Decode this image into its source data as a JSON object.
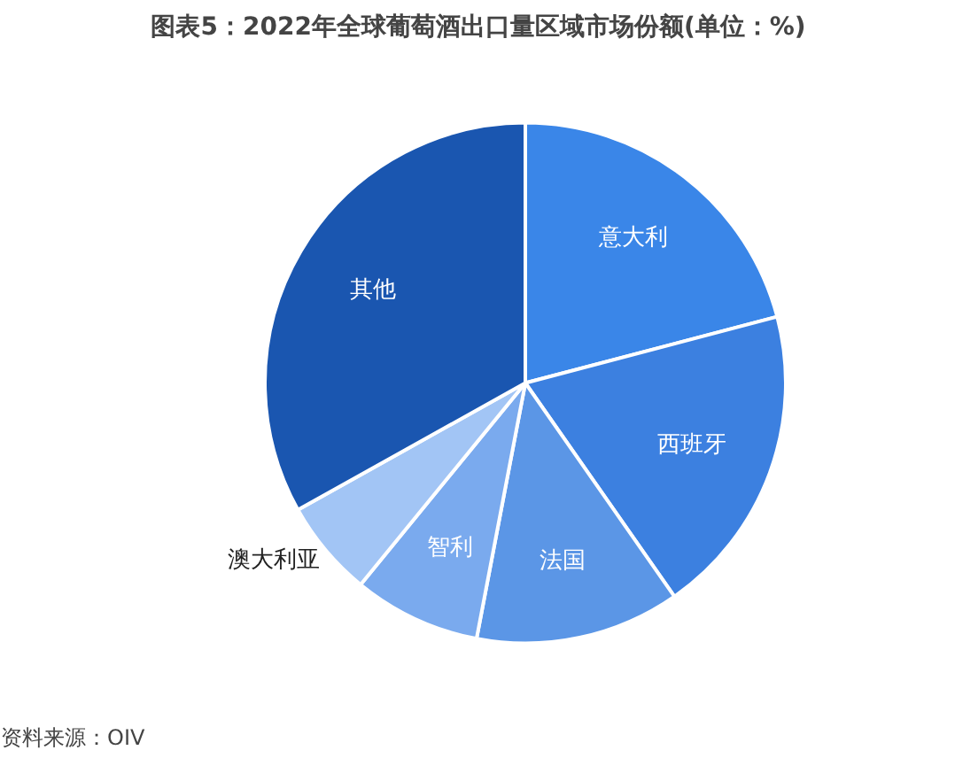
{
  "chart_data": {
    "type": "pie",
    "title": "图表5：2022年全球葡萄酒出口量区域市场份额(单位：%)",
    "categories": [
      "意大利",
      "西班牙",
      "法国",
      "智利",
      "澳大利亚",
      "其他"
    ],
    "values": [
      20.9,
      19.4,
      12.7,
      7.9,
      6.0,
      33.1
    ],
    "colors": [
      "#3a86e8",
      "#3c80e0",
      "#5b96e6",
      "#7aaaee",
      "#a2c5f5",
      "#1a56b0"
    ],
    "annotations": [
      "资料来源：OIV"
    ]
  }
}
